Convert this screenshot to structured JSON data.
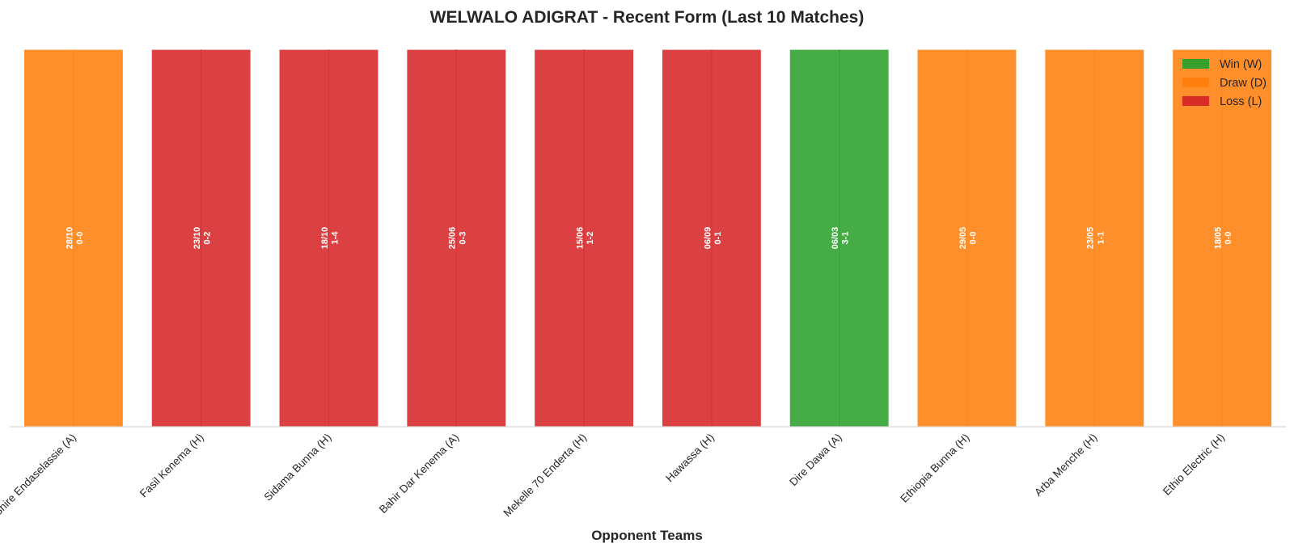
{
  "chart_data": {
    "type": "bar",
    "title": "WELWALO ADIGRAT - Recent Form (Last 10 Matches)",
    "xlabel": "Opponent Teams",
    "ylabel": "",
    "ylim": [
      0,
      1
    ],
    "grid": false,
    "legend_position": "top-right",
    "categories": [
      "Shire Endaselassie (A)",
      "Fasil Kenema (H)",
      "Sidama Bunna (H)",
      "Bahir Dar Kenema (A)",
      "Mekelle 70 Enderta (H)",
      "Hawassa (H)",
      "Dire Dawa (A)",
      "Ethiopia Bunna (H)",
      "Arba Menche (H)",
      "Ethio Electric (H)"
    ],
    "values": [
      1,
      1,
      1,
      1,
      1,
      1,
      1,
      1,
      1,
      1
    ],
    "results": [
      "D",
      "L",
      "L",
      "L",
      "L",
      "L",
      "W",
      "D",
      "D",
      "D"
    ],
    "dates": [
      "28/10",
      "23/10",
      "18/10",
      "25/06",
      "15/06",
      "06/09",
      "06/03",
      "29/05",
      "23/05",
      "18/05"
    ],
    "scores": [
      "0-0",
      "0-2",
      "1-4",
      "0-3",
      "1-2",
      "0-1",
      "3-1",
      "0-0",
      "1-1",
      "0-0"
    ],
    "legend": [
      {
        "key": "W",
        "label": "Win (W)",
        "color": "#2ca02c"
      },
      {
        "key": "D",
        "label": "Draw (D)",
        "color": "#ff7f0e"
      },
      {
        "key": "L",
        "label": "Loss (L)",
        "color": "#d62728"
      }
    ],
    "colors": {
      "W": "#2ca02c",
      "D": "#ff7f0e",
      "L": "#d62728"
    }
  }
}
